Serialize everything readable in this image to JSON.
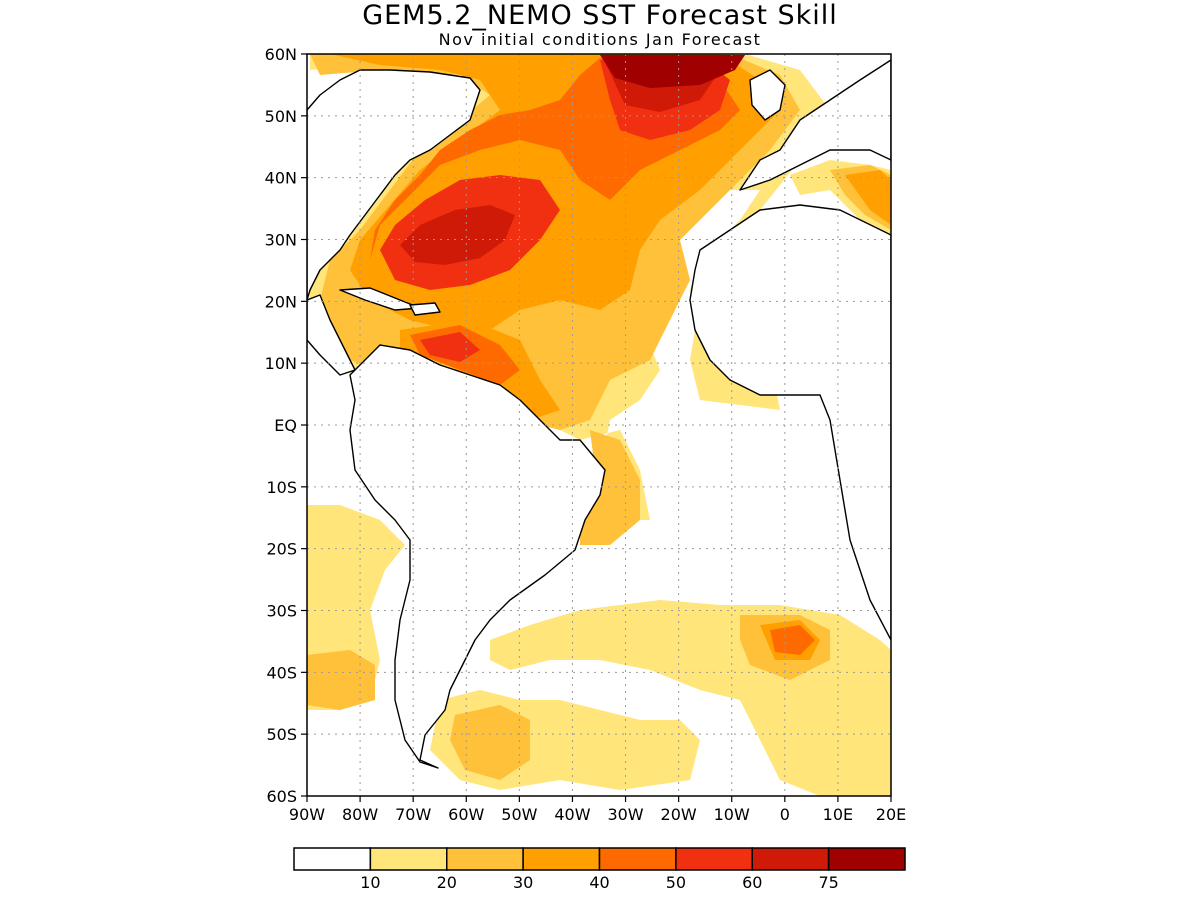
{
  "title": "GEM5.2_NEMO SST Forecast Skill",
  "subtitle": "Nov initial conditions  Jan Forecast",
  "lat_labels": [
    "60N",
    "50N",
    "40N",
    "30N",
    "20N",
    "10N",
    "EQ",
    "10S",
    "20S",
    "30S",
    "40S",
    "50S",
    "60S"
  ],
  "lon_labels": [
    "90W",
    "80W",
    "70W",
    "60W",
    "50W",
    "40W",
    "30W",
    "20W",
    "10W",
    "0",
    "10E",
    "20E"
  ],
  "legend": {
    "colors": [
      "#ffffff",
      "#ffe57a",
      "#ffc03a",
      "#ffa000",
      "#ff6a00",
      "#f03010",
      "#d01a08",
      "#a00000"
    ],
    "labels": [
      "10",
      "20",
      "30",
      "40",
      "50",
      "60",
      "75"
    ]
  },
  "map_extent": {
    "lon": [
      -90,
      20
    ],
    "lat": [
      -60,
      60
    ]
  },
  "grid": "dotted"
}
